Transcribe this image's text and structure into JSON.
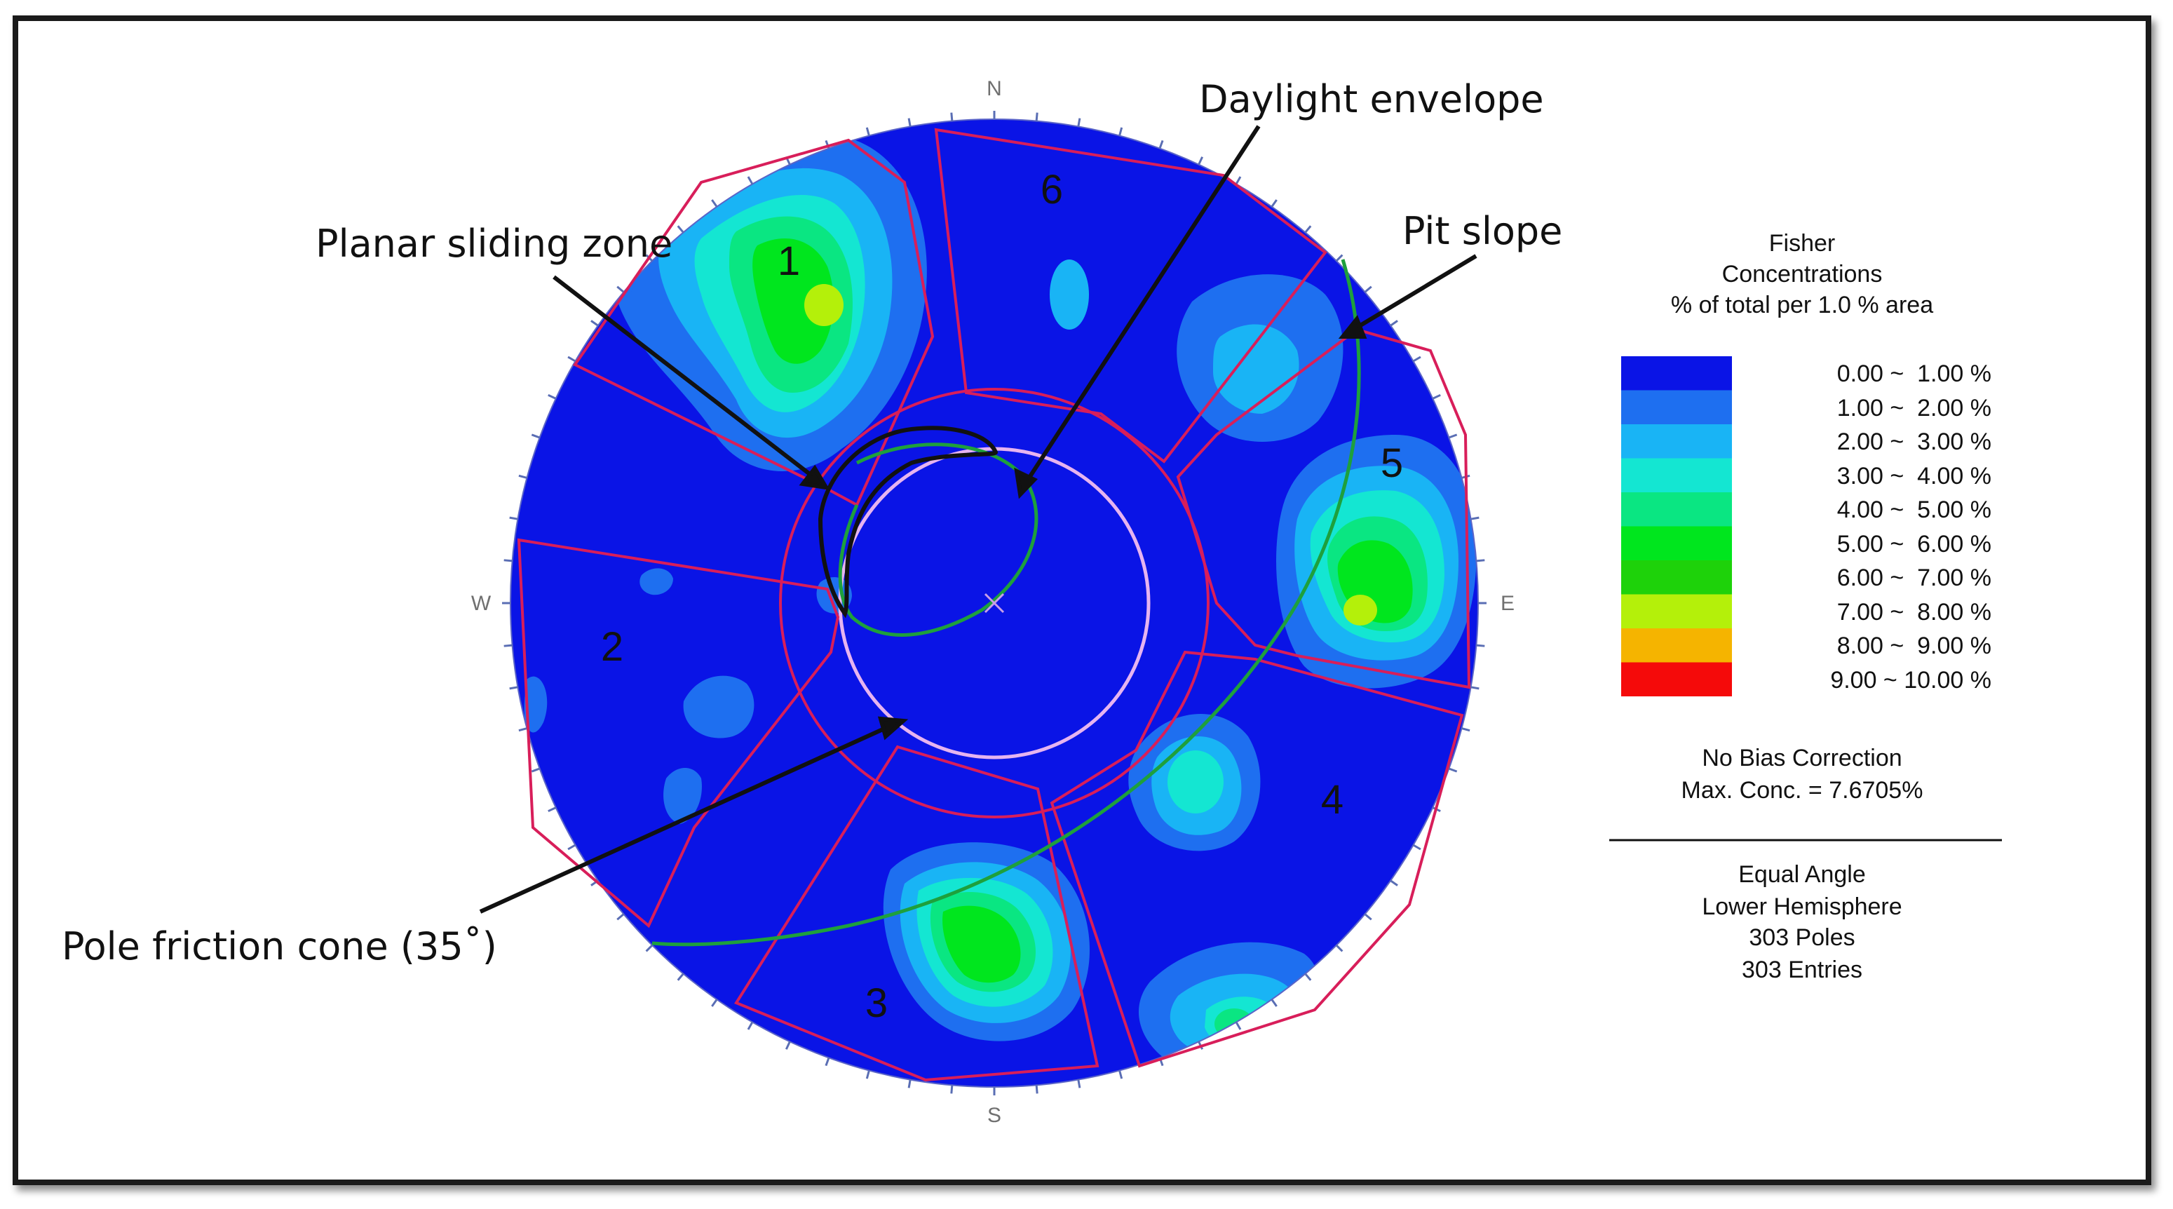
{
  "annotations": {
    "planar_sliding_zone": "Planar sliding zone",
    "daylight_envelope": "Daylight envelope",
    "pit_slope": "Pit slope",
    "pole_friction_cone": "Pole friction cone (35˚)"
  },
  "compass": {
    "n": "N",
    "s": "S",
    "e": "E",
    "w": "W"
  },
  "zone_numbers": [
    "1",
    "2",
    "3",
    "4",
    "5",
    "6"
  ],
  "legend": {
    "title_line1": "Fisher",
    "title_line2": "Concentrations",
    "title_line3": "% of total per 1.0 % area",
    "bins": [
      {
        "range": "0.00 ~  1.00 %",
        "color": "#0a14e6"
      },
      {
        "range": "1.00 ~  2.00 %",
        "color": "#1e6ff0"
      },
      {
        "range": "2.00 ~  3.00 %",
        "color": "#19b4f5"
      },
      {
        "range": "3.00 ~  4.00 %",
        "color": "#14e6d2"
      },
      {
        "range": "4.00 ~  5.00 %",
        "color": "#0ae682"
      },
      {
        "range": "5.00 ~  6.00 %",
        "color": "#00e61e"
      },
      {
        "range": "6.00 ~  7.00 %",
        "color": "#1ed20a"
      },
      {
        "range": "7.00 ~  8.00 %",
        "color": "#b4f00a"
      },
      {
        "range": "8.00 ~  9.00 %",
        "color": "#f5b400"
      },
      {
        "range": "9.00 ~ 10.00 %",
        "color": "#f50a0a"
      }
    ],
    "bias": "No Bias Correction",
    "max_conc": "Max. Conc. = 7.6705%",
    "projection": "Equal Angle",
    "hemisphere": "Lower Hemisphere",
    "poles": "303 Poles",
    "entries": "303 Entries"
  },
  "colors": {
    "net_background": "#0a14e6",
    "zone_outline": "#d81e5a",
    "pit_slope_curve": "#1ea03c",
    "friction_cone": "#e6b4f0"
  }
}
